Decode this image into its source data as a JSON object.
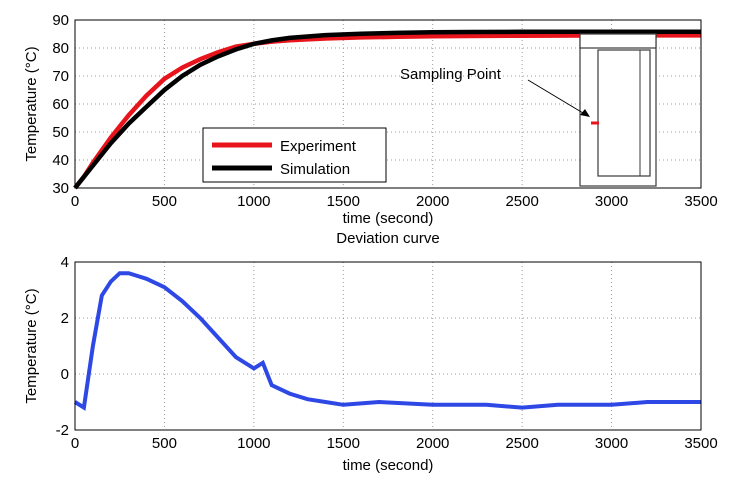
{
  "chart_data": [
    {
      "type": "line",
      "title": "",
      "xlabel": "time (second)",
      "ylabel": "Temperature (°C)",
      "xlim": [
        0,
        3500
      ],
      "ylim": [
        30,
        90
      ],
      "xticks": [
        0,
        500,
        1000,
        1500,
        2000,
        2500,
        3000,
        3500
      ],
      "yticks": [
        30,
        40,
        50,
        60,
        70,
        80,
        90
      ],
      "grid": true,
      "legend_position": "lower-center",
      "series": [
        {
          "name": "Experiment",
          "color": "#e8141c",
          "x": [
            0,
            50,
            100,
            200,
            300,
            400,
            500,
            600,
            700,
            800,
            900,
            1000,
            1100,
            1200,
            1400,
            1600,
            1800,
            2000,
            2200,
            2500,
            3000,
            3500
          ],
          "y": [
            30,
            34,
            39,
            48,
            56,
            63,
            69,
            73,
            76,
            78.5,
            80.5,
            81.5,
            82.3,
            82.8,
            83.4,
            83.8,
            84.0,
            84.2,
            84.3,
            84.4,
            84.5,
            84.5
          ]
        },
        {
          "name": "Simulation",
          "color": "#000000",
          "x": [
            0,
            50,
            100,
            200,
            300,
            400,
            500,
            600,
            700,
            800,
            900,
            1000,
            1100,
            1200,
            1400,
            1600,
            1800,
            2000,
            2200,
            2500,
            3000,
            3500
          ],
          "y": [
            30,
            34,
            38,
            46,
            53,
            59,
            65,
            70,
            74,
            77,
            79.5,
            81.5,
            82.7,
            83.6,
            84.6,
            85.1,
            85.4,
            85.6,
            85.7,
            85.8,
            85.8,
            85.8
          ]
        }
      ],
      "annotation": "Sampling Point"
    },
    {
      "type": "line",
      "title": "Deviation curve",
      "xlabel": "time (second)",
      "ylabel": "Temperature (°C)",
      "xlim": [
        0,
        3500
      ],
      "ylim": [
        -2,
        4
      ],
      "xticks": [
        0,
        500,
        1000,
        1500,
        2000,
        2500,
        3000,
        3500
      ],
      "yticks": [
        -2,
        0,
        2,
        4
      ],
      "grid": true,
      "series": [
        {
          "color": "#2e48e6",
          "x": [
            0,
            50,
            100,
            150,
            200,
            250,
            300,
            350,
            400,
            500,
            600,
            700,
            800,
            900,
            1000,
            1050,
            1100,
            1200,
            1300,
            1400,
            1500,
            1700,
            2000,
            2300,
            2500,
            2700,
            3000,
            3200,
            3500
          ],
          "y": [
            -1.0,
            -1.2,
            1.0,
            2.8,
            3.3,
            3.6,
            3.6,
            3.5,
            3.4,
            3.1,
            2.6,
            2.0,
            1.3,
            0.6,
            0.2,
            0.4,
            -0.4,
            -0.7,
            -0.9,
            -1.0,
            -1.1,
            -1.0,
            -1.1,
            -1.1,
            -1.2,
            -1.1,
            -1.1,
            -1.0,
            -1.0
          ]
        }
      ]
    }
  ]
}
